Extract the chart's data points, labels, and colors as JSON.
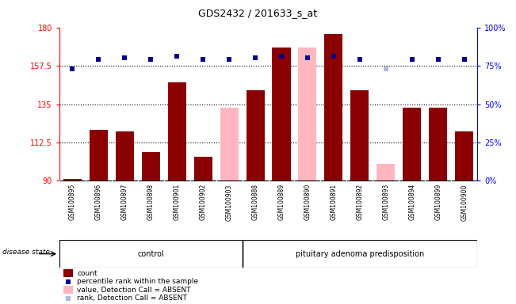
{
  "title": "GDS2432 / 201633_s_at",
  "samples": [
    "GSM100895",
    "GSM100896",
    "GSM100897",
    "GSM100898",
    "GSM100901",
    "GSM100902",
    "GSM100903",
    "GSM100888",
    "GSM100889",
    "GSM100890",
    "GSM100891",
    "GSM100892",
    "GSM100893",
    "GSM100894",
    "GSM100899",
    "GSM100900"
  ],
  "count_values": [
    91,
    120,
    119,
    107,
    148,
    104,
    133,
    143,
    168,
    168,
    176,
    143,
    100,
    133,
    133,
    119
  ],
  "count_absent": [
    false,
    false,
    false,
    false,
    false,
    false,
    true,
    false,
    false,
    true,
    false,
    false,
    true,
    false,
    false,
    false
  ],
  "rank_values": [
    73,
    79,
    80,
    79,
    81,
    79,
    79,
    80,
    81,
    80,
    81,
    79,
    73,
    79,
    79,
    79
  ],
  "rank_absent": [
    false,
    false,
    false,
    false,
    false,
    false,
    false,
    false,
    false,
    false,
    false,
    false,
    true,
    false,
    false,
    false
  ],
  "ylim_left": [
    90,
    180
  ],
  "ylim_right": [
    0,
    100
  ],
  "yticks_left": [
    90,
    112.5,
    135,
    157.5,
    180
  ],
  "yticks_right": [
    0,
    25,
    50,
    75,
    100
  ],
  "bar_color": "#8B0000",
  "bar_absent_color": "#FFB6C1",
  "rank_color": "#00008B",
  "rank_absent_color": "#AABBDD",
  "xlabel_area_color": "#CCCCCC",
  "group_color": "#98FB98",
  "control_count": 7,
  "pituitary_count": 9,
  "control_label": "control",
  "pituitary_label": "pituitary adenoma predisposition",
  "disease_state_label": "disease state",
  "legend_items": [
    {
      "color": "#8B0000",
      "type": "rect",
      "label": "count"
    },
    {
      "color": "#00008B",
      "type": "square",
      "label": "percentile rank within the sample"
    },
    {
      "color": "#FFB6C1",
      "type": "rect",
      "label": "value, Detection Call = ABSENT"
    },
    {
      "color": "#AABBDD",
      "type": "square",
      "label": "rank, Detection Call = ABSENT"
    }
  ]
}
